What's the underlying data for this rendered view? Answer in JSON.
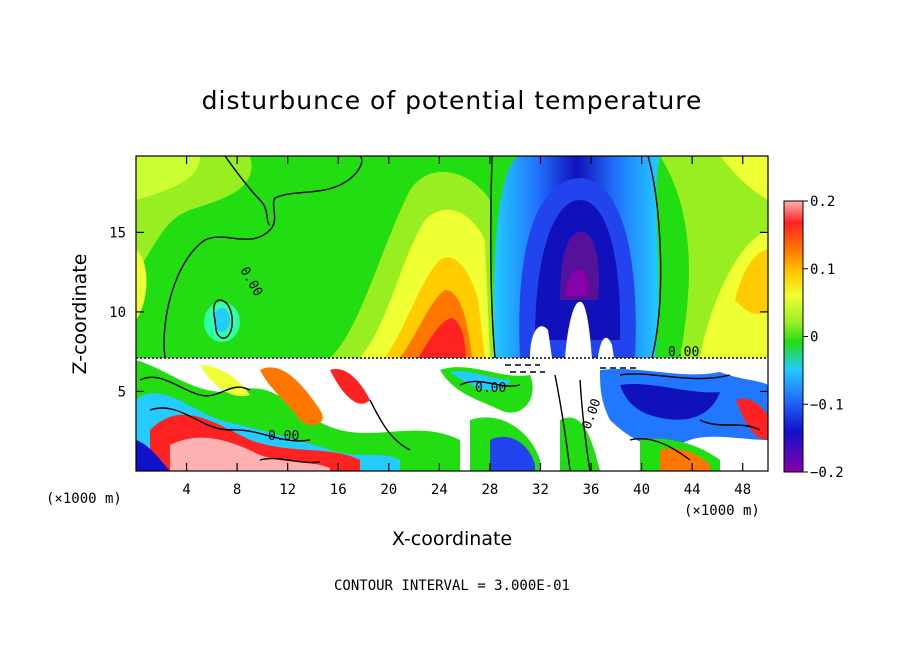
{
  "chart_data": {
    "type": "heatmap",
    "title": "disturbunce of potential temperature",
    "xlabel": "X-coordinate",
    "ylabel": "Z-coordinate",
    "x_unit": "(×1000 m)",
    "z_unit": "(×1000 m)",
    "x_ticks": [
      4,
      8,
      12,
      16,
      20,
      24,
      28,
      32,
      36,
      40,
      44,
      48
    ],
    "y_ticks": [
      5,
      10,
      15
    ],
    "xlim": [
      0,
      50
    ],
    "ylim": [
      0,
      19.8
    ],
    "colorbar": {
      "ticks": [
        "0.2",
        "0.1",
        "0",
        "−0.1",
        "−0.2"
      ],
      "range": [
        -0.2,
        0.2
      ]
    },
    "contour_labels": [
      "0.00",
      "0.00",
      "0.00",
      "0.00",
      "0.00"
    ],
    "contour_interval": "CONTOUR INTERVAL = 3.000E-01",
    "colors": {
      "green": "#22dd11",
      "yellow": "#eeff33",
      "orange": "#ff9900",
      "red": "#ff2222",
      "blue": "#1111dd",
      "purple": "#8800aa",
      "cyan": "#22ccff"
    }
  }
}
